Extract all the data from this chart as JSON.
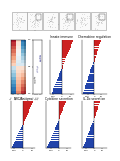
{
  "heatmap": {
    "col_labels": [
      "KC1",
      "KC2",
      "KC3"
    ],
    "cmap": "RdBu_r",
    "data": [
      [
        2.0,
        0.5,
        -1.8
      ],
      [
        1.8,
        0.3,
        -1.6
      ],
      [
        1.6,
        0.2,
        -1.4
      ],
      [
        1.4,
        0.1,
        -1.2
      ],
      [
        1.2,
        -0.1,
        -1.0
      ],
      [
        1.0,
        -0.2,
        -0.8
      ],
      [
        0.8,
        -0.3,
        -0.6
      ],
      [
        0.6,
        -0.4,
        -0.4
      ],
      [
        -0.6,
        0.4,
        0.4
      ],
      [
        -0.8,
        0.5,
        0.6
      ],
      [
        -1.0,
        0.6,
        0.8
      ],
      [
        -1.2,
        0.7,
        1.0
      ],
      [
        -1.4,
        0.8,
        1.2
      ],
      [
        -1.6,
        0.9,
        1.4
      ],
      [
        -1.8,
        1.0,
        1.6
      ],
      [
        -2.0,
        1.2,
        1.8
      ]
    ]
  },
  "scatter_groups": {
    "x": [
      0,
      0,
      0,
      0,
      0,
      1,
      1,
      1,
      1,
      1,
      2,
      2,
      2,
      2,
      2
    ],
    "y": [
      0.2,
      0.3,
      0.25,
      0.28,
      0.22,
      0.4,
      0.5,
      0.45,
      0.48,
      0.42,
      0.6,
      0.7,
      0.65,
      0.68,
      0.62
    ],
    "colors": [
      "#888888",
      "#888888",
      "#888888",
      "#888888",
      "#888888",
      "#aaaacc",
      "#aaaacc",
      "#aaaacc",
      "#aaaacc",
      "#aaaacc",
      "#6666aa",
      "#6666aa",
      "#6666aa",
      "#6666aa",
      "#6666aa"
    ],
    "xlabels": [
      "KC1",
      "KC2",
      "KC3"
    ]
  },
  "bar_charts_row1": [
    {
      "title": "Innate immune",
      "n_red": 14,
      "n_blue": 12,
      "red_vals": [
        13,
        12,
        11,
        10,
        9,
        8,
        7,
        6,
        5,
        4,
        3,
        2,
        1.5,
        1
      ],
      "blue_vals": [
        -1,
        -2,
        -3,
        -4,
        -5,
        -6,
        -7,
        -8,
        -9,
        -10,
        -11,
        -12
      ]
    },
    {
      "title": "Chemokine regulation",
      "n_red": 10,
      "n_blue": 14,
      "red_vals": [
        9,
        8,
        7,
        6,
        5,
        4,
        3,
        2,
        1.5,
        1
      ],
      "blue_vals": [
        -2,
        -4,
        -5,
        -6,
        -7,
        -8,
        -9,
        -10,
        -11,
        -12,
        -13,
        -14,
        -15,
        -16
      ]
    }
  ],
  "bar_charts_row2": [
    {
      "title": "MHC/Antigen",
      "n_red": 12,
      "n_blue": 12,
      "red_vals": [
        11,
        10,
        9,
        8,
        7,
        6,
        5,
        4,
        3,
        2,
        1.5,
        1
      ],
      "blue_vals": [
        -1,
        -2,
        -3,
        -4,
        -5,
        -6,
        -7,
        -8,
        -9,
        -10,
        -11,
        -12
      ]
    },
    {
      "title": "Cytokine secretion",
      "n_red": 10,
      "n_blue": 14,
      "red_vals": [
        9,
        8,
        7,
        6,
        5,
        4,
        3,
        2,
        1.5,
        1
      ],
      "blue_vals": [
        -1,
        -2,
        -3,
        -4,
        -5,
        -6,
        -7,
        -8,
        -9,
        -10,
        -11,
        -12,
        -13,
        -14
      ]
    },
    {
      "title": "IL-1b secretion",
      "n_red": 8,
      "n_blue": 14,
      "red_vals": [
        7,
        6,
        5,
        4,
        3,
        2,
        1.5,
        1
      ],
      "blue_vals": [
        -1,
        -2,
        -3,
        -4,
        -5,
        -6,
        -7,
        -8,
        -9,
        -10,
        -11,
        -12,
        -13,
        -14
      ]
    }
  ],
  "colors": {
    "red": "#cc2222",
    "blue": "#2244aa",
    "light_red": "#dd8888",
    "light_blue": "#8899cc",
    "bg": "#ffffff",
    "panel_bg": "#f5f5f5"
  },
  "flow_panels": 6
}
